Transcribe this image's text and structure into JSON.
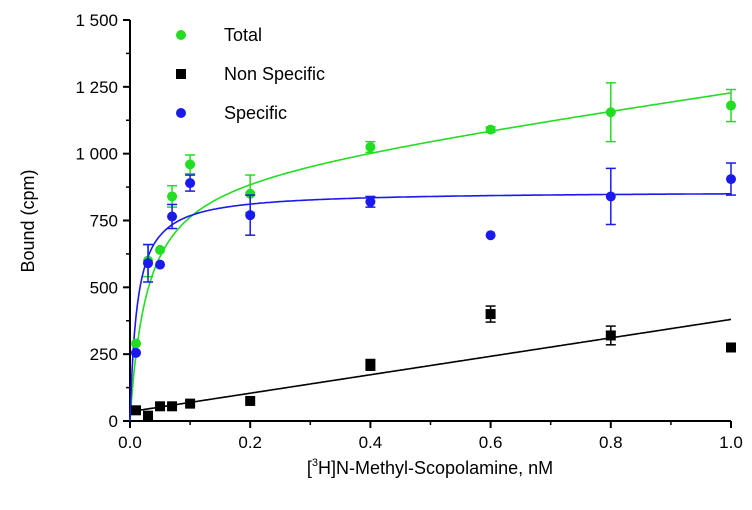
{
  "chart_data": {
    "type": "scatter",
    "xlabel_parts": [
      "[",
      "3",
      "H]N-Methyl-Scopolamine, nM"
    ],
    "ylabel": "Bound (cpm)",
    "xlim": [
      0,
      1.0
    ],
    "ylim": [
      0,
      1500
    ],
    "x_ticks": [
      0.0,
      0.2,
      0.4,
      0.6,
      0.8,
      1.0
    ],
    "x_tick_labels": [
      "0.0",
      "0.2",
      "0.4",
      "0.6",
      "0.8",
      "1.0"
    ],
    "y_ticks": [
      0,
      250,
      500,
      750,
      1000,
      1250,
      1500
    ],
    "y_tick_labels": [
      "0",
      "250",
      "500",
      "750",
      "1 000",
      "1 250",
      "1 500"
    ],
    "grid": false,
    "legend_position": "top-left",
    "series": [
      {
        "name": "Total",
        "color": "#22dd22",
        "marker": "circle",
        "x": [
          0.01,
          0.03,
          0.05,
          0.07,
          0.1,
          0.2,
          0.4,
          0.6,
          0.8,
          1.0
        ],
        "y": [
          290,
          600,
          640,
          840,
          960,
          850,
          1025,
          1090,
          1155,
          1180
        ],
        "err": [
          0,
          60,
          0,
          40,
          35,
          70,
          20,
          10,
          110,
          60
        ],
        "fit": {
          "model": "one-site-plus-linear",
          "Bmax": 935,
          "Kd": 0.028,
          "NS": 318
        }
      },
      {
        "name": "Non Specific",
        "color": "#000000",
        "marker": "square",
        "x": [
          0.01,
          0.03,
          0.05,
          0.07,
          0.1,
          0.2,
          0.4,
          0.6,
          0.8,
          1.0
        ],
        "y": [
          40,
          20,
          55,
          55,
          65,
          75,
          210,
          400,
          320,
          275
        ],
        "err": [
          0,
          0,
          0,
          0,
          0,
          0,
          20,
          30,
          35,
          0
        ],
        "fit": {
          "model": "linear",
          "slope": 345,
          "intercept": 35
        }
      },
      {
        "name": "Specific",
        "color": "#1a1aee",
        "marker": "circle",
        "x": [
          0.01,
          0.03,
          0.05,
          0.07,
          0.1,
          0.2,
          0.4,
          0.6,
          0.8,
          1.0
        ],
        "y": [
          255,
          590,
          585,
          765,
          890,
          770,
          820,
          695,
          840,
          905
        ],
        "err": [
          0,
          70,
          0,
          45,
          30,
          75,
          20,
          0,
          105,
          60
        ],
        "fit": {
          "model": "one-site",
          "Bmax": 860,
          "Kd": 0.012
        }
      }
    ]
  }
}
